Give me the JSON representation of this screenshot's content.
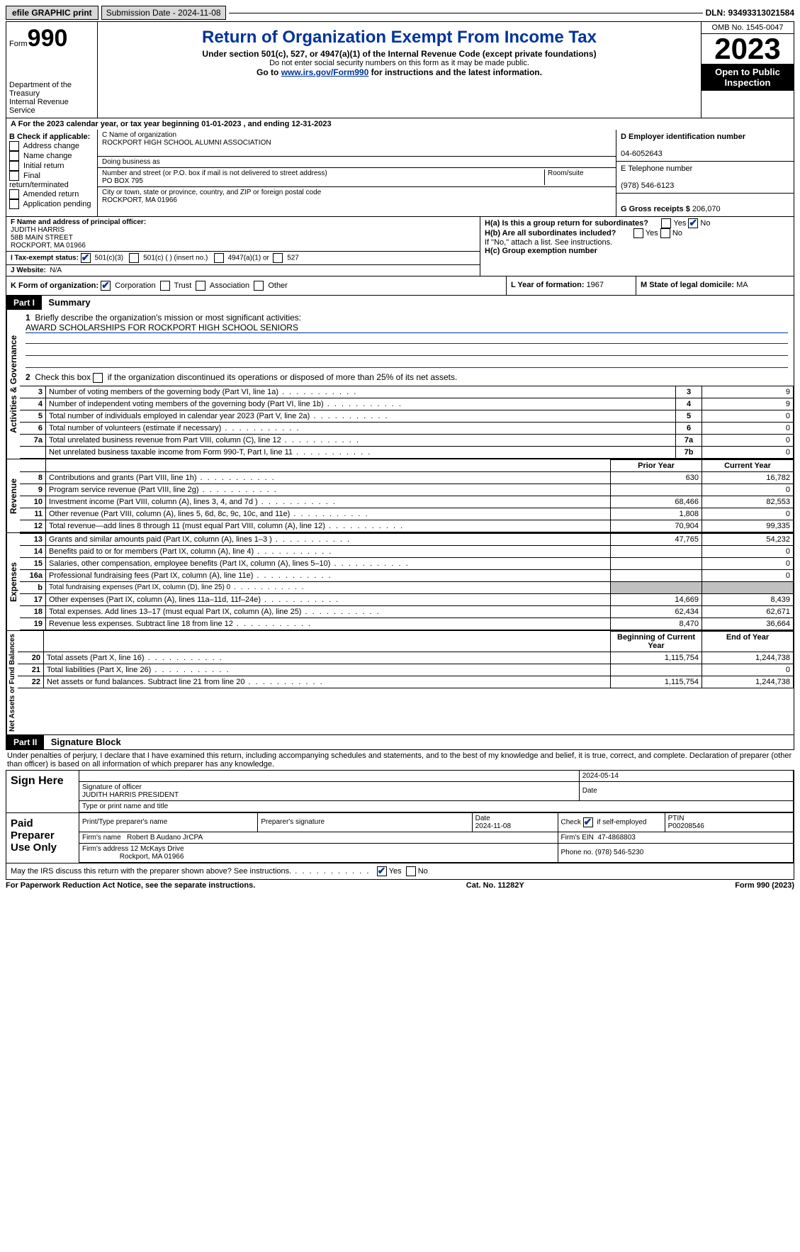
{
  "topbar": {
    "efile": "efile GRAPHIC print",
    "subdate_label": "Submission Date - 2024-11-08",
    "dln": "DLN: 93493313021584"
  },
  "header": {
    "form": "Form",
    "num": "990",
    "title": "Return of Organization Exempt From Income Tax",
    "sub1": "Under section 501(c), 527, or 4947(a)(1) of the Internal Revenue Code (except private foundations)",
    "sub2": "Do not enter social security numbers on this form as it may be made public.",
    "sub3_pre": "Go to ",
    "sub3_link": "www.irs.gov/Form990",
    "sub3_post": " for instructions and the latest information.",
    "dept": "Department of the Treasury\nInternal Revenue Service",
    "omb": "OMB No. 1545-0047",
    "year": "2023",
    "open": "Open to Public Inspection"
  },
  "taxyear": "For the 2023 calendar year, or tax year beginning 01-01-2023   , and ending 12-31-2023",
  "B": {
    "label": "B Check if applicable:",
    "items": [
      "Address change",
      "Name change",
      "Initial return",
      "Final return/terminated",
      "Amended return",
      "Application pending"
    ]
  },
  "C": {
    "nameLabel": "C Name of organization",
    "name": "ROCKPORT HIGH SCHOOL ALUMNI ASSOCIATION",
    "dba": "Doing business as",
    "addrLabel": "Number and street (or P.O. box if mail is not delivered to street address)",
    "addr": "PO BOX 795",
    "room": "Room/suite",
    "cityLabel": "City or town, state or province, country, and ZIP or foreign postal code",
    "city": "ROCKPORT, MA  01966"
  },
  "D": {
    "label": "D Employer identification number",
    "val": "04-6052643"
  },
  "E": {
    "label": "E Telephone number",
    "val": "(978) 546-6123"
  },
  "G": {
    "label": "G Gross receipts $ ",
    "val": "206,070"
  },
  "F": {
    "label": "F  Name and address of principal officer:",
    "name": "JUDITH HARRIS",
    "addr1": "58B MAIN STREET",
    "addr2": "ROCKPORT, MA  01966"
  },
  "H": {
    "a": "H(a)  Is this a group return for subordinates?",
    "b": "H(b)  Are all subordinates included?",
    "bnote": "If \"No,\" attach a list. See instructions.",
    "c": "H(c)  Group exemption number",
    "yes": "Yes",
    "no": "No"
  },
  "I": {
    "label": "I   Tax-exempt status:",
    "opts": [
      "501(c)(3)",
      "501(c) (  ) (insert no.)",
      "4947(a)(1) or",
      "527"
    ]
  },
  "J": {
    "label": "J   Website:",
    "val": "N/A"
  },
  "K": {
    "label": "K Form of organization:",
    "opts": [
      "Corporation",
      "Trust",
      "Association",
      "Other"
    ]
  },
  "L": {
    "label": "L Year of formation: ",
    "val": "1967"
  },
  "M": {
    "label": "M State of legal domicile: ",
    "val": "MA"
  },
  "part1": {
    "bar": "Part I",
    "title": "Summary",
    "l1": "Briefly describe the organization's mission or most significant activities:",
    "l1v": "AWARD SCHOLARSHIPS FOR ROCKPORT HIGH SCHOOL SENIORS",
    "l2": "Check this box        if the organization discontinued its operations or disposed of more than 25% of its net assets.",
    "rows_gov": [
      {
        "n": "3",
        "d": "Number of voting members of the governing body (Part VI, line 1a)",
        "b": "3",
        "v": "9"
      },
      {
        "n": "4",
        "d": "Number of independent voting members of the governing body (Part VI, line 1b)",
        "b": "4",
        "v": "9"
      },
      {
        "n": "5",
        "d": "Total number of individuals employed in calendar year 2023 (Part V, line 2a)",
        "b": "5",
        "v": "0"
      },
      {
        "n": "6",
        "d": "Total number of volunteers (estimate if necessary)",
        "b": "6",
        "v": "0"
      },
      {
        "n": "7a",
        "d": "Total unrelated business revenue from Part VIII, column (C), line 12",
        "b": "7a",
        "v": "0"
      },
      {
        "n": "",
        "d": "Net unrelated business taxable income from Form 990-T, Part I, line 11",
        "b": "7b",
        "v": "0"
      }
    ],
    "hdr_prior": "Prior Year",
    "hdr_curr": "Current Year",
    "rows_rev": [
      {
        "n": "8",
        "d": "Contributions and grants (Part VIII, line 1h)",
        "p": "630",
        "c": "16,782"
      },
      {
        "n": "9",
        "d": "Program service revenue (Part VIII, line 2g)",
        "p": "",
        "c": "0"
      },
      {
        "n": "10",
        "d": "Investment income (Part VIII, column (A), lines 3, 4, and 7d )",
        "p": "68,466",
        "c": "82,553"
      },
      {
        "n": "11",
        "d": "Other revenue (Part VIII, column (A), lines 5, 6d, 8c, 9c, 10c, and 11e)",
        "p": "1,808",
        "c": "0"
      },
      {
        "n": "12",
        "d": "Total revenue—add lines 8 through 11 (must equal Part VIII, column (A), line 12)",
        "p": "70,904",
        "c": "99,335"
      }
    ],
    "rows_exp": [
      {
        "n": "13",
        "d": "Grants and similar amounts paid (Part IX, column (A), lines 1–3 )",
        "p": "47,765",
        "c": "54,232"
      },
      {
        "n": "14",
        "d": "Benefits paid to or for members (Part IX, column (A), line 4)",
        "p": "",
        "c": "0"
      },
      {
        "n": "15",
        "d": "Salaries, other compensation, employee benefits (Part IX, column (A), lines 5–10)",
        "p": "",
        "c": "0"
      },
      {
        "n": "16a",
        "d": "Professional fundraising fees (Part IX, column (A), line 11e)",
        "p": "",
        "c": "0"
      },
      {
        "n": "b",
        "d": "Total fundraising expenses (Part IX, column (D), line 25) 0",
        "p": "grey",
        "c": "grey"
      },
      {
        "n": "17",
        "d": "Other expenses (Part IX, column (A), lines 11a–11d, 11f–24e)",
        "p": "14,669",
        "c": "8,439"
      },
      {
        "n": "18",
        "d": "Total expenses. Add lines 13–17 (must equal Part IX, column (A), line 25)",
        "p": "62,434",
        "c": "62,671"
      },
      {
        "n": "19",
        "d": "Revenue less expenses. Subtract line 18 from line 12",
        "p": "8,470",
        "c": "36,664"
      }
    ],
    "hdr_beg": "Beginning of Current Year",
    "hdr_end": "End of Year",
    "rows_net": [
      {
        "n": "20",
        "d": "Total assets (Part X, line 16)",
        "p": "1,115,754",
        "c": "1,244,738"
      },
      {
        "n": "21",
        "d": "Total liabilities (Part X, line 26)",
        "p": "",
        "c": "0"
      },
      {
        "n": "22",
        "d": "Net assets or fund balances. Subtract line 21 from line 20",
        "p": "1,115,754",
        "c": "1,244,738"
      }
    ],
    "tabs": {
      "gov": "Activities & Governance",
      "rev": "Revenue",
      "exp": "Expenses",
      "net": "Net Assets or Fund Balances"
    }
  },
  "part2": {
    "bar": "Part II",
    "title": "Signature Block",
    "note": "Under penalties of perjury, I declare that I have examined this return, including accompanying schedules and statements, and to the best of my knowledge and belief, it is true, correct, and complete. Declaration of preparer (other than officer) is based on all information of which preparer has any knowledge.",
    "sign": "Sign Here",
    "sigoff": "Signature of officer",
    "sigdate": "Date",
    "sigdateval": "2024-05-14",
    "sigtype": "Type or print name and title",
    "signame": "JUDITH HARRIS PRESIDENT",
    "paid": "Paid Preparer Use Only",
    "prep_cols": [
      "Print/Type preparer's name",
      "Preparer's signature",
      "Date",
      "Check       if self-employed",
      "PTIN"
    ],
    "prep_vals": [
      "",
      "",
      "2024-11-08",
      "checked",
      "P00208546"
    ],
    "firm_name_l": "Firm's name",
    "firm_name": "Robert B Audano JrCPA",
    "firm_ein_l": "Firm's EIN",
    "firm_ein": "47-4868803",
    "firm_addr_l": "Firm's address",
    "firm_addr1": "12 McKays Drive",
    "firm_addr2": "Rockport, MA  01966",
    "phone_l": "Phone no.",
    "phone": "(978) 546-5230",
    "discuss": "May the IRS discuss this return with the preparer shown above? See instructions."
  },
  "footer": {
    "l": "For Paperwork Reduction Act Notice, see the separate instructions.",
    "m": "Cat. No. 11282Y",
    "r": "Form 990 (2023)"
  }
}
